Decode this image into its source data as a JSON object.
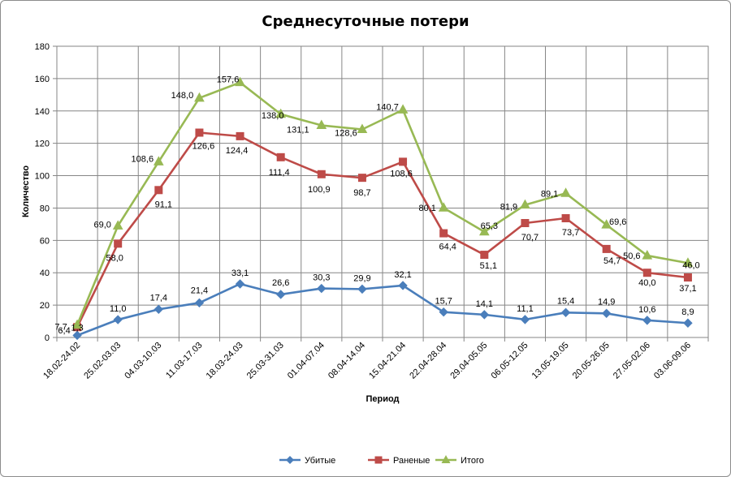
{
  "chart_data": {
    "type": "line",
    "title": "Среднесуточные потери",
    "xlabel": "Период",
    "ylabel": "Количество",
    "ylim": [
      0,
      180
    ],
    "ystep": 20,
    "grid": true,
    "legend": "bottom",
    "categories": [
      "18.02-24.02",
      "25.02-03.03",
      "04.03-10.03",
      "11.03-17.03",
      "18.03-24.03",
      "25.03-31.03",
      "01.04-07.04",
      "08.04-14.04",
      "15.04-21.04",
      "22.04-28.04",
      "29.04-05.05",
      "06.05-12.05",
      "13.05-19.05",
      "20.05-26.05",
      "27.05-02.06",
      "03.06-09.06"
    ],
    "series": [
      {
        "name": "Убитые",
        "color": "#4a7ebb",
        "marker": "diamond",
        "values": [
          1.3,
          11.0,
          17.4,
          21.4,
          33.1,
          26.6,
          30.3,
          29.9,
          32.1,
          15.7,
          14.1,
          11.1,
          15.4,
          14.9,
          10.6,
          8.9
        ],
        "labels": [
          "1,3",
          "11,0",
          "17,4",
          "21,4",
          "33,1",
          "26,6",
          "30,3",
          "29,9",
          "32,1",
          "15,7",
          "14,1",
          "11,1",
          "15,4",
          "14,9",
          "10,6",
          "8,9"
        ]
      },
      {
        "name": "Раненые",
        "color": "#be4b48",
        "marker": "square",
        "values": [
          6.4,
          58.0,
          91.1,
          126.6,
          124.4,
          111.4,
          100.9,
          98.7,
          108.6,
          64.4,
          51.1,
          70.7,
          73.7,
          54.7,
          40.0,
          37.1
        ],
        "labels": [
          "6,4",
          "58,0",
          "91,1",
          "126,6",
          "124,4",
          "111,4",
          "100,9",
          "98,7",
          "108,6",
          "64,4",
          "51,1",
          "70,7",
          "73,7",
          "54,7",
          "40,0",
          "37,1"
        ]
      },
      {
        "name": "Итого",
        "color": "#98b954",
        "marker": "triangle",
        "values": [
          7.7,
          69.0,
          108.6,
          148.0,
          157.6,
          138.0,
          131.1,
          128.6,
          140.7,
          80.1,
          65.3,
          81.9,
          89.1,
          69.6,
          50.6,
          46.0
        ],
        "labels": [
          "7,7",
          "69,0",
          "108,6",
          "148,0",
          "157,6",
          "138,0",
          "131,1",
          "128,6",
          "140,7",
          "80,1",
          "65,3",
          "81,9",
          "89,1",
          "69,6",
          "50,6",
          "46,0"
        ]
      }
    ]
  }
}
